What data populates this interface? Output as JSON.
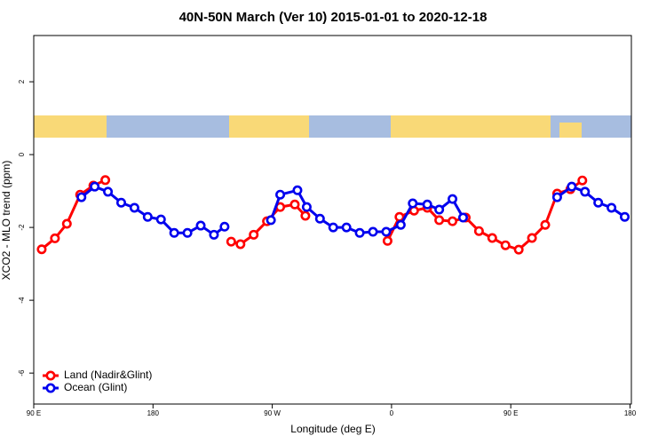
{
  "chart_data": {
    "type": "line",
    "title": "40N-50N March (Ver 10)   2015-01-01 to 2020-12-18",
    "x_label": "Longitude (deg E)",
    "y_label": "XCO2 - MLO trend (ppm)",
    "xlim": [
      90,
      541
    ],
    "ylim": [
      -6.85,
      3.27
    ],
    "xticks": [
      {
        "value": 90,
        "label": "90 E"
      },
      180,
      {
        "value": 270,
        "label": "90 W"
      },
      {
        "value": 360,
        "label": "0"
      },
      {
        "value": 450,
        "label": "90 E"
      },
      {
        "value": 540,
        "label": "180"
      }
    ],
    "yticks": [
      -6,
      -4,
      -2,
      0,
      2
    ],
    "legend": "bottom-left",
    "series": [
      {
        "name": "Land (Nadir&Glint)",
        "color": "#ff0000",
        "x": [
          96,
          106,
          115,
          125,
          135,
          144,
          null,
          239,
          246,
          256,
          266,
          276,
          287,
          295,
          null,
          357,
          366,
          377,
          387,
          396,
          406,
          416,
          426,
          436,
          446,
          456,
          466,
          476,
          485,
          495,
          504
        ],
        "values": [
          -2.6,
          -2.3,
          -1.9,
          -1.1,
          -0.85,
          -0.7,
          null,
          -2.39,
          -2.46,
          -2.2,
          -1.83,
          -1.44,
          -1.37,
          -1.68,
          null,
          -2.37,
          -1.71,
          -1.54,
          -1.46,
          -1.8,
          -1.83,
          -1.73,
          -2.1,
          -2.29,
          -2.49,
          -2.61,
          -2.29,
          -1.93,
          -1.07,
          -0.95,
          -0.71
        ]
      },
      {
        "name": "Ocean (Glint)",
        "color": "#0000ee",
        "x": [
          126,
          136,
          146,
          156,
          166,
          176,
          186,
          196,
          206,
          216,
          226,
          234,
          null,
          269,
          276,
          289,
          296,
          306,
          316,
          326,
          336,
          346,
          356,
          367,
          376,
          387,
          396,
          406,
          414,
          null,
          485,
          496,
          506,
          516,
          526,
          536
        ],
        "values": [
          -1.17,
          -0.88,
          -1.02,
          -1.32,
          -1.46,
          -1.71,
          -1.78,
          -2.15,
          -2.15,
          -1.95,
          -2.2,
          -1.98,
          null,
          -1.8,
          -1.1,
          -0.98,
          -1.44,
          -1.76,
          -2.0,
          -2.0,
          -2.15,
          -2.12,
          -2.12,
          -1.93,
          -1.34,
          -1.37,
          -1.51,
          -1.22,
          -1.73,
          null,
          -1.17,
          -0.88,
          -1.02,
          -1.32,
          -1.46,
          -1.71
        ]
      }
    ]
  }
}
